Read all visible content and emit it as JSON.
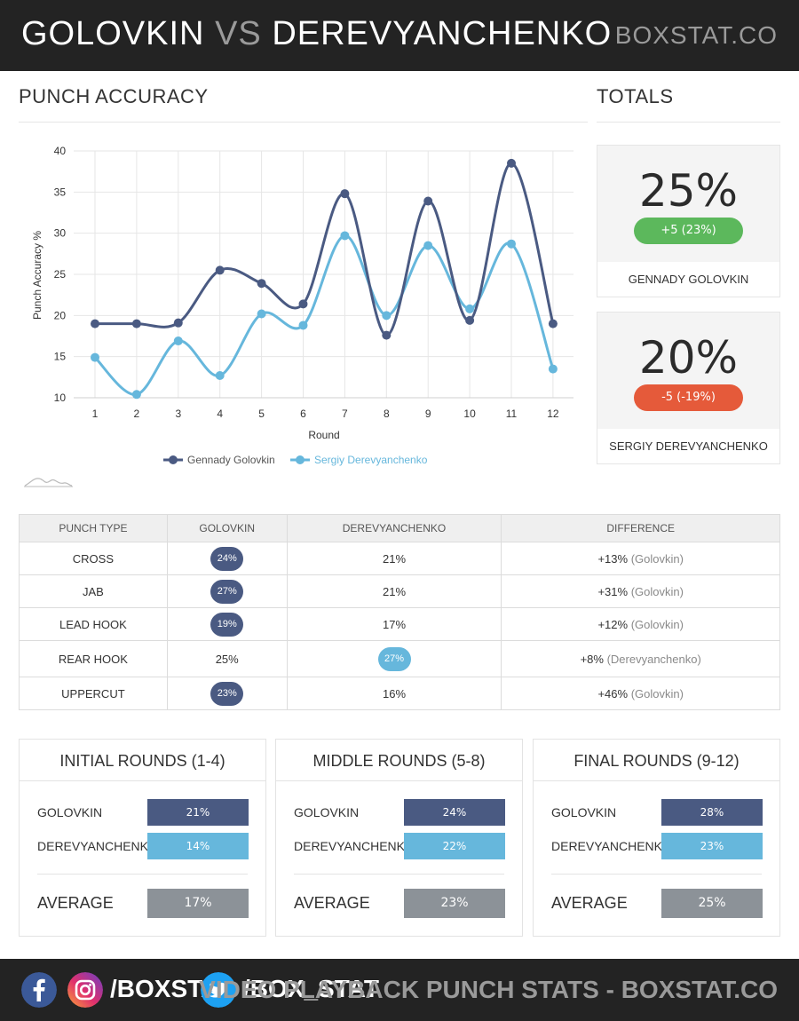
{
  "header": {
    "fighter1": "GOLOVKIN",
    "vs": "VS",
    "fighter2": "DEREVYANCHENKO",
    "brand": "BOXSTAT.CO"
  },
  "sections": {
    "accuracy_title": "PUNCH ACCURACY",
    "totals_title": "TOTALS"
  },
  "chart_data": {
    "type": "line",
    "title": "",
    "xlabel": "Round",
    "ylabel": "Punch Accuracy %",
    "x": [
      1,
      2,
      3,
      4,
      5,
      6,
      7,
      8,
      9,
      10,
      11,
      12
    ],
    "ylim": [
      10,
      40
    ],
    "yticks": [
      10,
      15,
      20,
      25,
      30,
      35,
      40
    ],
    "grid": true,
    "legend": "bottom",
    "series": [
      {
        "name": "Gennady Golovkin",
        "color": "#4a5a82",
        "values": [
          19,
          19,
          19.1,
          25.5,
          23.9,
          21.4,
          34.8,
          17.6,
          33.9,
          19.4,
          38.5,
          19
        ]
      },
      {
        "name": "Sergiy Derevyanchenko",
        "color": "#66b7dc",
        "values": [
          14.9,
          10.4,
          16.9,
          12.7,
          20.2,
          18.8,
          29.7,
          20,
          28.5,
          20.8,
          28.7,
          13.5
        ]
      }
    ]
  },
  "totals": [
    {
      "pct": "25%",
      "diff": "+5 (23%)",
      "diff_color": "#5cb85c",
      "name": "GENNADY GOLOVKIN"
    },
    {
      "pct": "20%",
      "diff": "-5 (-19%)",
      "diff_color": "#e55a3a",
      "name": "SERGIY DEREVYANCHENKO"
    }
  ],
  "table": {
    "headers": [
      "PUNCH TYPE",
      "GOLOVKIN",
      "DEREVYANCHENKO",
      "DIFFERENCE"
    ],
    "rows": [
      {
        "type": "CROSS",
        "golovkin": "24%",
        "derevyanchenko": "21%",
        "leader": "golovkin",
        "diff_value": "+13%",
        "diff_who": "(Golovkin)"
      },
      {
        "type": "JAB",
        "golovkin": "27%",
        "derevyanchenko": "21%",
        "leader": "golovkin",
        "diff_value": "+31%",
        "diff_who": "(Golovkin)"
      },
      {
        "type": "LEAD HOOK",
        "golovkin": "19%",
        "derevyanchenko": "17%",
        "leader": "golovkin",
        "diff_value": "+12%",
        "diff_who": "(Golovkin)"
      },
      {
        "type": "REAR HOOK",
        "golovkin": "25%",
        "derevyanchenko": "27%",
        "leader": "derevyanchenko",
        "diff_value": "+8%",
        "diff_who": "(Derevyanchenko)"
      },
      {
        "type": "UPPERCUT",
        "golovkin": "23%",
        "derevyanchenko": "16%",
        "leader": "golovkin",
        "diff_value": "+46%",
        "diff_who": "(Golovkin)"
      }
    ]
  },
  "round_groups": [
    {
      "title": "INITIAL ROUNDS (1-4)",
      "golovkin_label": "GOLOVKIN",
      "golovkin": "21%",
      "derevyanchenko_label": "DEREVYANCHENKO",
      "derevyanchenko": "14%",
      "average_label": "AVERAGE",
      "average": "17%"
    },
    {
      "title": "MIDDLE ROUNDS (5-8)",
      "golovkin_label": "GOLOVKIN",
      "golovkin": "24%",
      "derevyanchenko_label": "DEREVYANCHENKO",
      "derevyanchenko": "22%",
      "average_label": "AVERAGE",
      "average": "23%"
    },
    {
      "title": "FINAL ROUNDS (9-12)",
      "golovkin_label": "GOLOVKIN",
      "golovkin": "28%",
      "derevyanchenko_label": "DEREVYANCHENKO",
      "derevyanchenko": "23%",
      "average_label": "AVERAGE",
      "average": "25%"
    }
  ],
  "footer": {
    "handle1": "/BOXSTAT",
    "handle2": "/BOX_STAT",
    "tagline": "VIDEO PLAYBACK PUNCH STATS - BOXSTAT.CO",
    "icons": [
      "facebook-icon",
      "instagram-icon",
      "twitter-icon"
    ]
  }
}
